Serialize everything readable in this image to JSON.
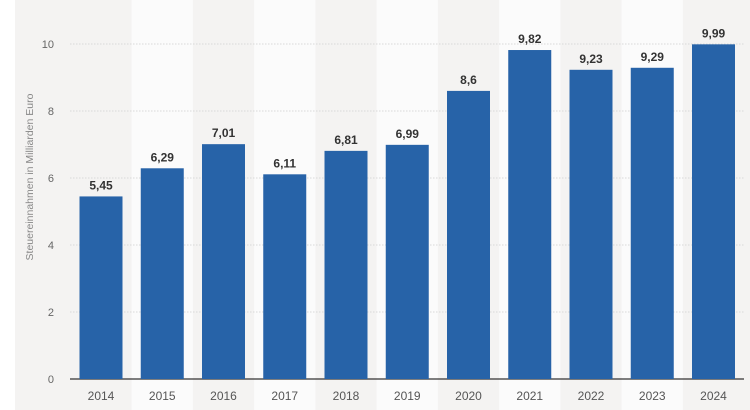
{
  "chart_data": {
    "type": "bar",
    "title": "",
    "xlabel": "",
    "ylabel": "Steuereinnahmen in Milliarden Euro",
    "categories": [
      "2014",
      "2015",
      "2016",
      "2017",
      "2018",
      "2019",
      "2020",
      "2021",
      "2022",
      "2023",
      "2024"
    ],
    "values": [
      5.45,
      6.29,
      7.01,
      6.11,
      6.81,
      6.99,
      8.6,
      9.82,
      9.23,
      9.29,
      9.99
    ],
    "data_labels": [
      "5,45",
      "6,29",
      "7,01",
      "6,11",
      "6,81",
      "6,99",
      "8,6",
      "9,82",
      "9,23",
      "9,29",
      "9,99"
    ],
    "ylim": [
      0,
      10
    ],
    "yticks": [
      0,
      2,
      4,
      6,
      8,
      10
    ],
    "grid": true,
    "colors": {
      "bar": "#2763a8",
      "band": "#f4f3f2",
      "band_alt": "#fbfbfb",
      "axis": "#333333"
    }
  }
}
